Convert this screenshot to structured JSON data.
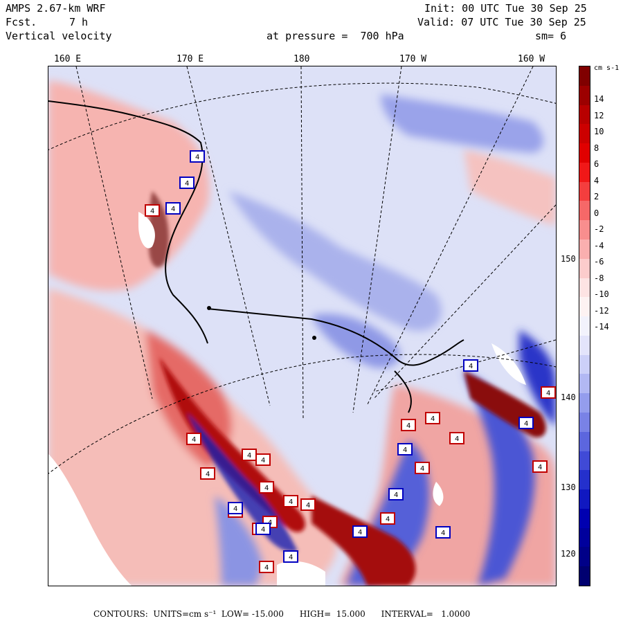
{
  "header": {
    "model": "AMPS 2.67-km WRF",
    "fcst_label": "Fcst.",
    "fcst_value": "7 h",
    "field": "Vertical velocity",
    "init": "Init: 00 UTC Tue 30 Sep 25",
    "valid": "Valid: 07 UTC Tue 30 Sep 25",
    "pressure": "at pressure =  700 hPa",
    "smooth": "sm= 6"
  },
  "map": {
    "longitude_labels": [
      "160 E",
      "170 E",
      "180",
      "170 W",
      "160 W"
    ],
    "latitude_labels": [
      "150 W",
      "140 W",
      "130 W",
      "120 W"
    ],
    "box_value": "4",
    "colors": {
      "positive_strong": "#8b0000",
      "positive_weak": "#f5a6a6",
      "near_zero": "#f3f3f8",
      "negative_weak": "#c9cff3",
      "negative_strong": "#00008b",
      "no_data": "#ffffff"
    }
  },
  "colorbar": {
    "units": "cm s-1",
    "tick_labels": [
      "14",
      "12",
      "10",
      "8",
      "6",
      "4",
      "2",
      "0",
      "-2",
      "-4",
      "-6",
      "-8",
      "-10",
      "-12",
      "-14"
    ],
    "colors": [
      "#800000",
      "#9c0000",
      "#b80000",
      "#cc0000",
      "#e00000",
      "#f01818",
      "#f43e3e",
      "#f66868",
      "#f88e8e",
      "#faafaf",
      "#fccccc",
      "#fde3e3",
      "#fdf2f2",
      "#f2f2fc",
      "#e3e4fb",
      "#ccd0f8",
      "#b2b8f3",
      "#949ded",
      "#7982e6",
      "#5c66de",
      "#404ad6",
      "#2430cc",
      "#1018c0",
      "#0000b0",
      "#00009c",
      "#000088",
      "#000070"
    ]
  },
  "footer": {
    "text": "CONTOURS:  UNITS=cm s⁻¹  LOW= -15.000      HIGH=  15.000      INTERVAL=   1.0000"
  }
}
